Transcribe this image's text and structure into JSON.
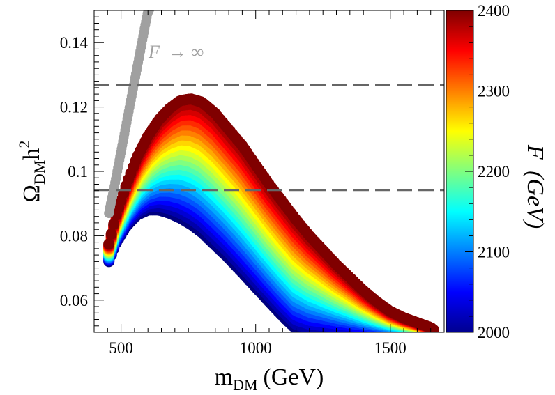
{
  "chart_data": {
    "type": "scatter",
    "title": "",
    "xlabel_main": "m",
    "xlabel_sub": "DM",
    "xlabel_unit": "(GeV)",
    "ylabel_main": "Ω",
    "ylabel_sub": "DM",
    "ylabel_tail": "h",
    "ylabel_sup": "2",
    "xlim": [
      400,
      1700
    ],
    "ylim": [
      0.05,
      0.15
    ],
    "x_ticks": [
      500,
      1000,
      1500
    ],
    "x_tick_labels": [
      "500",
      "1000",
      "1500"
    ],
    "y_ticks": [
      0.06,
      0.08,
      0.1,
      0.12,
      0.14
    ],
    "y_tick_labels": [
      "0.06",
      "0.08",
      "0.1",
      "0.12",
      "0.14"
    ],
    "reference_lines": [
      {
        "y": 0.1268,
        "style": "dashed",
        "color": "#666666"
      },
      {
        "y": 0.0942,
        "style": "dashed",
        "color": "#666666"
      }
    ],
    "series": [
      {
        "name": "F → ∞",
        "label_main": "F",
        "label_arrow": "→ ∞",
        "color": "#a0a0a0",
        "x": [
          455,
          462,
          470,
          478,
          486,
          494,
          502,
          510,
          518,
          526,
          534,
          542,
          550,
          558,
          566,
          574,
          582,
          590,
          598,
          606
        ],
        "y": [
          0.087,
          0.09,
          0.093,
          0.0965,
          0.1,
          0.1035,
          0.107,
          0.1105,
          0.114,
          0.1175,
          0.121,
          0.1245,
          0.128,
          0.1315,
          0.135,
          0.1385,
          0.142,
          0.1455,
          0.149,
          0.1505
        ]
      },
      {
        "name": "F scan band",
        "upper_envelope": {
          "x": [
            455,
            480,
            520,
            560,
            600,
            640,
            680,
            720,
            760,
            800,
            850,
            900,
            950,
            1000,
            1050,
            1100,
            1150,
            1200,
            1250,
            1300,
            1350,
            1400,
            1450,
            1500,
            1550,
            1600,
            1650,
            1665
          ],
          "y": [
            0.0775,
            0.086,
            0.096,
            0.1045,
            0.111,
            0.116,
            0.1195,
            0.122,
            0.1225,
            0.1215,
            0.118,
            0.113,
            0.108,
            0.102,
            0.096,
            0.0905,
            0.085,
            0.08,
            0.0755,
            0.071,
            0.067,
            0.063,
            0.0595,
            0.0565,
            0.0545,
            0.053,
            0.0515,
            0.0505
          ]
        },
        "lower_envelope": {
          "x": [
            455,
            480,
            520,
            560,
            600,
            640,
            680,
            720,
            760,
            800,
            850,
            900,
            950,
            1000,
            1050,
            1100,
            1150,
            1200,
            1250,
            1300,
            1350,
            1400,
            1450,
            1500,
            1550,
            1600,
            1650,
            1665
          ],
          "y": [
            0.072,
            0.0775,
            0.083,
            0.0865,
            0.088,
            0.088,
            0.087,
            0.0855,
            0.0835,
            0.081,
            0.077,
            0.073,
            0.0685,
            0.064,
            0.0595,
            0.055,
            0.051,
            0.05,
            0.05,
            0.05,
            0.05,
            0.05,
            0.05,
            0.05,
            0.05,
            0.05,
            0.05,
            0.05
          ]
        }
      }
    ],
    "colorbar": {
      "label": "F (GeV)",
      "label_main": "F",
      "label_unit": "(GeV)",
      "range": [
        2000,
        2400
      ],
      "ticks": [
        2000,
        2100,
        2200,
        2300,
        2400
      ],
      "tick_labels": [
        "2000",
        "2100",
        "2200",
        "2300",
        "2400"
      ],
      "colormap": "jet"
    }
  }
}
